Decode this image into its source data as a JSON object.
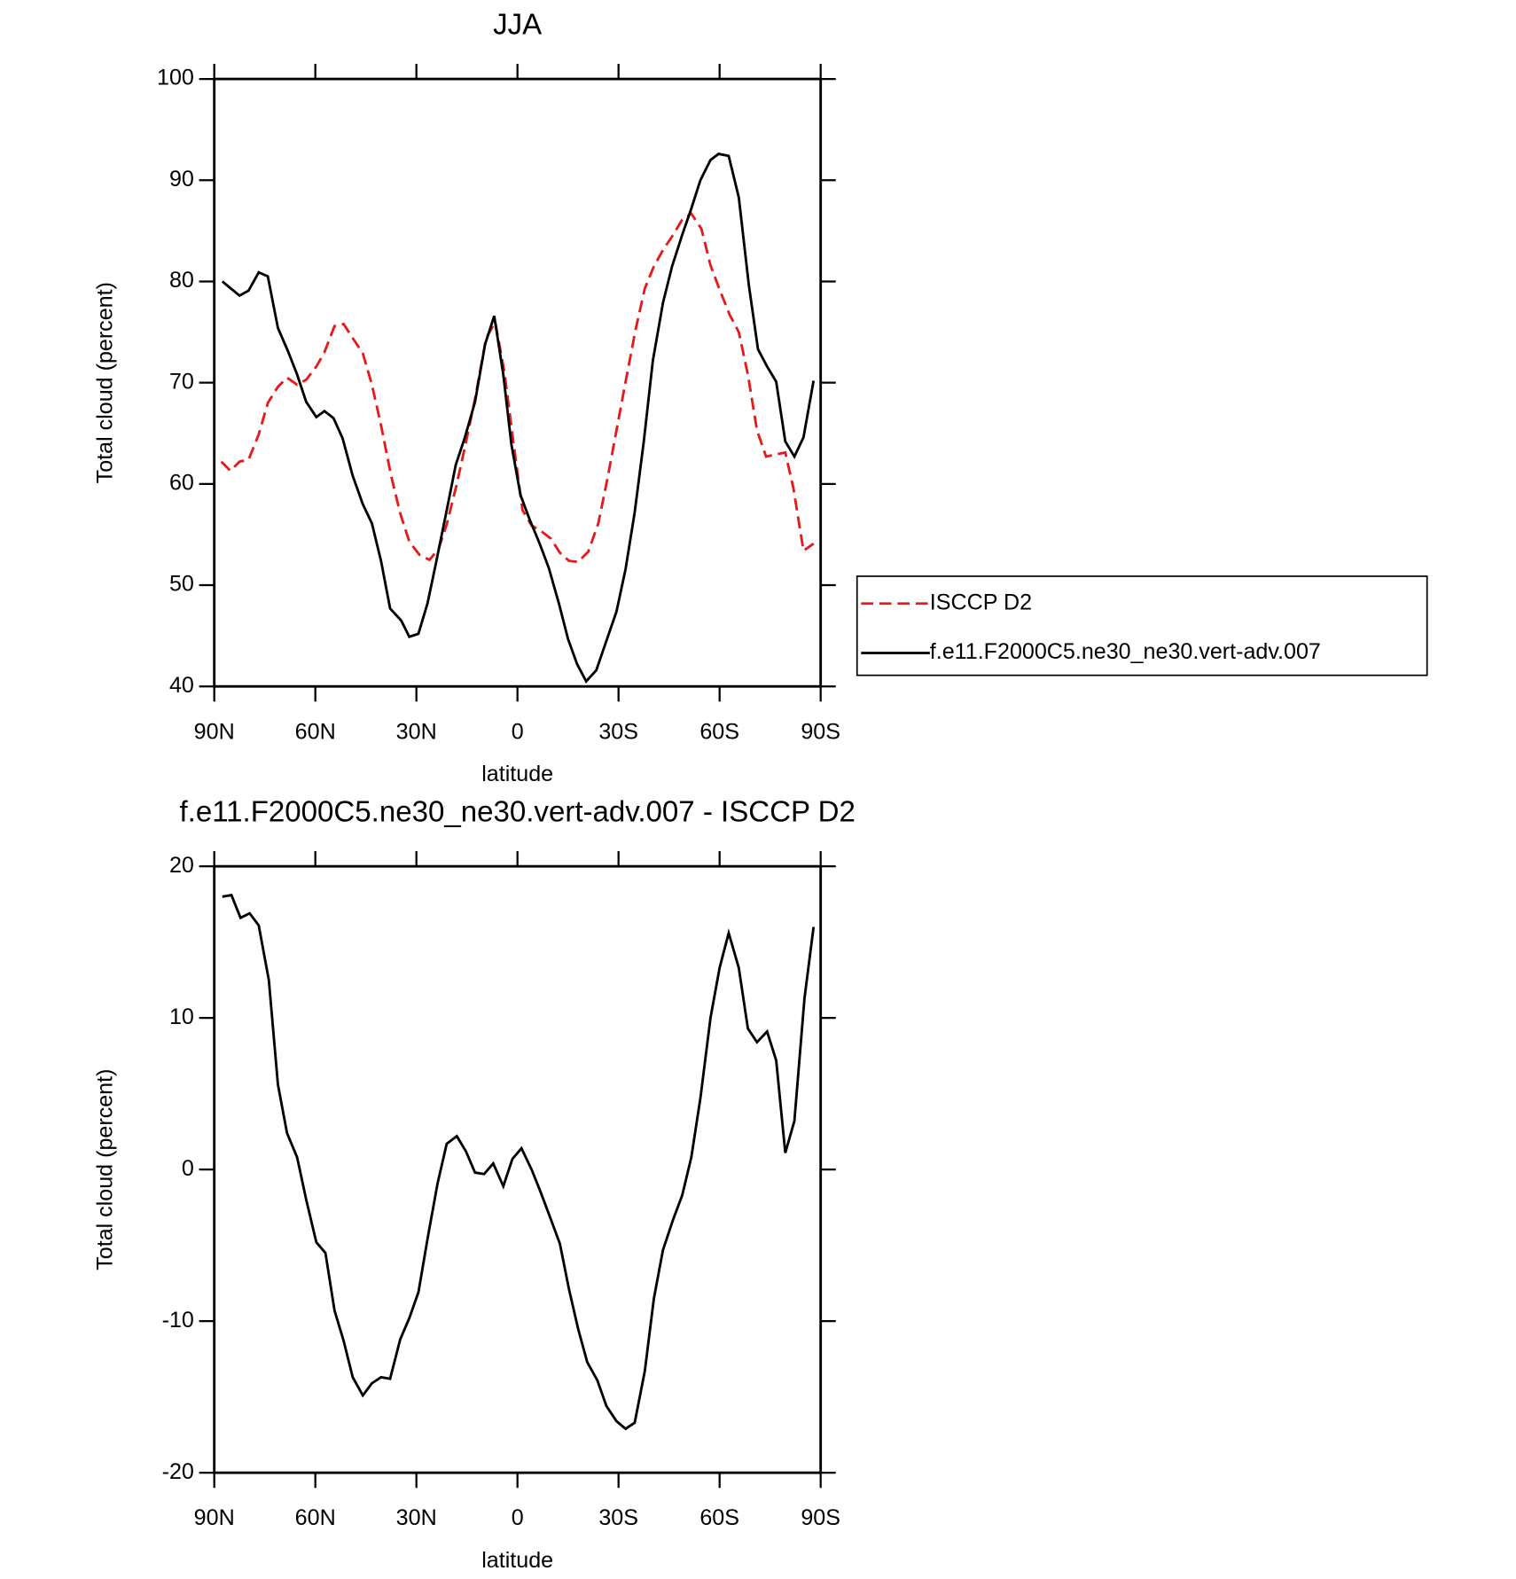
{
  "chart_data": [
    {
      "type": "line",
      "title": "JJA",
      "xlabel": "latitude",
      "ylabel": "Total cloud (percent)",
      "xlim": [
        90,
        -90
      ],
      "ylim": [
        40,
        100
      ],
      "xticks": [
        {
          "value": 90,
          "label": "90N"
        },
        {
          "value": 60,
          "label": "60N"
        },
        {
          "value": 30,
          "label": "30N"
        },
        0,
        {
          "value": -30,
          "label": "30S"
        },
        {
          "value": -60,
          "label": "60S"
        },
        {
          "value": -90,
          "label": "90S"
        }
      ],
      "yticks": [
        40,
        50,
        60,
        70,
        80,
        90,
        100
      ],
      "legend": "right",
      "series": [
        {
          "name": "ISCCP D2",
          "color": "#e41a1c",
          "dash": true,
          "x": [
            87.9,
            85.2,
            82.5,
            79.8,
            76.8,
            74.1,
            71.1,
            68.4,
            65.4,
            62.7,
            59.7,
            57.3,
            54.3,
            51.6,
            48.9,
            45.9,
            43.2,
            40.5,
            37.5,
            34.8,
            32.1,
            29.1,
            26.1,
            23.4,
            21.0,
            18.0,
            15.3,
            12.6,
            9.3,
            6.6,
            3.9,
            1.2,
            -1.5,
            -4.2,
            -7.2,
            -9.9,
            -12.6,
            -15.3,
            -18.0,
            -21.0,
            -24.0,
            -26.7,
            -29.4,
            -32.1,
            -35.1,
            -37.8,
            -40.5,
            -43.2,
            -46.2,
            -48.9,
            -51.6,
            -54.6,
            -57.3,
            -60.0,
            -63.0,
            -65.7,
            -68.4,
            -71.1,
            -73.8,
            -76.5,
            -79.5,
            -81.9,
            -84.9,
            -87.9
          ],
          "values": [
            62.2,
            61.3,
            62.2,
            62.4,
            64.9,
            68.0,
            69.6,
            70.5,
            69.8,
            70.3,
            71.6,
            73.0,
            75.6,
            75.8,
            74.4,
            72.9,
            69.8,
            65.8,
            60.8,
            57.1,
            54.3,
            53.0,
            52.5,
            53.6,
            56.0,
            60.0,
            64.1,
            68.4,
            74.4,
            76.0,
            71.1,
            64.1,
            57.4,
            55.9,
            55.3,
            54.6,
            53.2,
            52.4,
            52.3,
            53.3,
            56.1,
            60.5,
            65.3,
            70.1,
            75.3,
            79.3,
            81.5,
            83.1,
            84.6,
            86.1,
            86.7,
            85.2,
            81.6,
            79.2,
            76.7,
            75.0,
            70.8,
            65.3,
            62.7,
            62.9,
            63.1,
            59.6,
            53.4,
            54.1
          ]
        },
        {
          "name": "f.e11.F2000C5.ne30_ne30.vert-adv.007",
          "color": "#000000",
          "dash": false,
          "x": [
            87.6,
            82.5,
            79.8,
            76.8,
            74.1,
            71.1,
            68.1,
            65.4,
            62.7,
            59.7,
            57.3,
            54.6,
            51.9,
            48.9,
            45.9,
            43.2,
            40.5,
            37.8,
            34.5,
            32.1,
            29.4,
            26.7,
            24.3,
            21.0,
            18.3,
            15.6,
            12.6,
            9.6,
            6.9,
            4.2,
            1.8,
            -0.9,
            -3.6,
            -6.6,
            -9.3,
            -12.3,
            -15.0,
            -17.7,
            -20.4,
            -23.4,
            -26.4,
            -29.4,
            -32.1,
            -34.8,
            -37.5,
            -40.2,
            -43.2,
            -45.9,
            -48.9,
            -51.6,
            -54.3,
            -57.3,
            -59.7,
            -62.7,
            -65.7,
            -68.7,
            -71.4,
            -74.1,
            -76.8,
            -79.5,
            -82.2,
            -84.9,
            -87.9
          ],
          "values": [
            80.0,
            78.6,
            79.1,
            80.9,
            80.5,
            75.4,
            73.1,
            70.8,
            68.1,
            66.6,
            67.2,
            66.5,
            64.5,
            60.8,
            58.0,
            56.1,
            52.4,
            47.7,
            46.5,
            44.9,
            45.2,
            48.2,
            52.0,
            57.4,
            61.9,
            64.6,
            68.1,
            73.8,
            76.6,
            70.8,
            63.9,
            58.9,
            56.5,
            54.1,
            51.7,
            48.2,
            44.7,
            42.2,
            40.5,
            41.6,
            44.5,
            47.4,
            51.6,
            57.2,
            64.2,
            72.2,
            77.9,
            81.5,
            84.6,
            87.2,
            90.0,
            92.0,
            92.6,
            92.4,
            88.3,
            79.6,
            73.3,
            71.6,
            70.1,
            64.2,
            62.7,
            64.6,
            70.2
          ]
        }
      ]
    },
    {
      "type": "line",
      "title": "f.e11.F2000C5.ne30_ne30.vert-adv.007 - ISCCP D2",
      "xlabel": "latitude",
      "ylabel": "Total cloud (percent)",
      "xlim": [
        90,
        -90
      ],
      "ylim": [
        -20,
        20
      ],
      "xticks": [
        {
          "value": 90,
          "label": "90N"
        },
        {
          "value": 60,
          "label": "60N"
        },
        {
          "value": 30,
          "label": "30N"
        },
        0,
        {
          "value": -30,
          "label": "30S"
        },
        {
          "value": -60,
          "label": "60S"
        },
        {
          "value": -90,
          "label": "90S"
        }
      ],
      "yticks": [
        -20,
        -10,
        0,
        10,
        20
      ],
      "series": [
        {
          "color": "#000000",
          "dash": false,
          "x": [
            87.6,
            84.9,
            82.2,
            79.5,
            76.8,
            73.8,
            71.1,
            68.4,
            65.4,
            62.7,
            59.7,
            57.0,
            54.3,
            51.6,
            48.9,
            45.9,
            43.2,
            40.5,
            37.8,
            34.8,
            32.1,
            29.4,
            26.4,
            23.7,
            21.0,
            18.0,
            15.3,
            12.6,
            9.9,
            7.2,
            4.2,
            1.5,
            -1.2,
            -4.2,
            -6.9,
            -9.6,
            -12.6,
            -15.3,
            -18.0,
            -20.7,
            -23.7,
            -26.4,
            -29.4,
            -32.1,
            -34.8,
            -37.8,
            -40.5,
            -43.2,
            -46.2,
            -48.9,
            -51.6,
            -54.3,
            -57.3,
            -60.0,
            -62.7,
            -65.7,
            -68.4,
            -71.1,
            -74.1,
            -76.8,
            -79.5,
            -82.2,
            -85.2,
            -87.9
          ],
          "values": [
            18.0,
            18.1,
            16.6,
            16.9,
            16.1,
            12.5,
            5.6,
            2.4,
            0.8,
            -2.0,
            -4.8,
            -5.5,
            -9.3,
            -11.3,
            -13.7,
            -14.9,
            -14.1,
            -13.7,
            -13.8,
            -11.2,
            -9.8,
            -8.1,
            -4.2,
            -0.9,
            1.7,
            2.2,
            1.2,
            -0.2,
            -0.3,
            0.4,
            -1.1,
            0.7,
            1.4,
            0.0,
            -1.5,
            -3.1,
            -4.9,
            -7.9,
            -10.5,
            -12.7,
            -13.9,
            -15.6,
            -16.6,
            -17.1,
            -16.7,
            -13.3,
            -8.5,
            -5.3,
            -3.3,
            -1.7,
            0.8,
            4.7,
            10.0,
            13.3,
            15.6,
            13.3,
            9.3,
            8.4,
            9.1,
            7.2,
            1.1,
            3.2,
            11.3,
            16.0
          ]
        }
      ]
    }
  ]
}
